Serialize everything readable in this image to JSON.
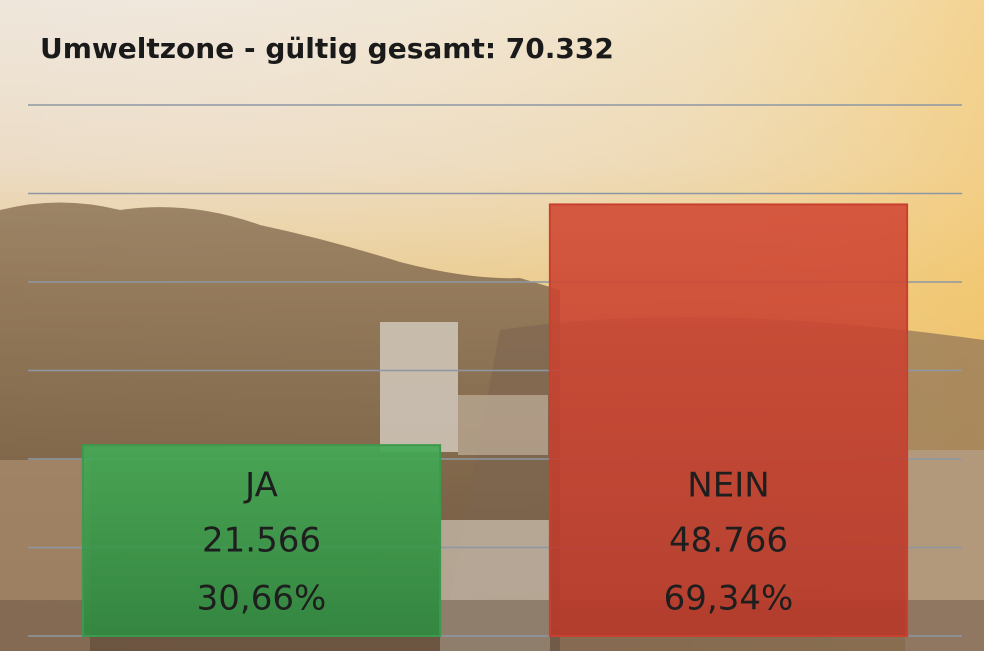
{
  "chart_data": {
    "type": "bar",
    "title": "Umweltzone - gültig gesamt: 70.332",
    "categories": [
      "JA",
      "NEIN"
    ],
    "values": [
      21566,
      48766
    ],
    "value_labels": [
      "21.566",
      "48.766"
    ],
    "percentages": [
      30.66,
      69.34
    ],
    "percentage_labels": [
      "30,66%",
      "69,34%"
    ],
    "colors": [
      "#3d9a4c",
      "#c8412f"
    ],
    "ylim": [
      0,
      60000
    ],
    "yticks": [
      0,
      10000,
      20000,
      30000,
      40000,
      50000,
      60000
    ],
    "grid": true
  }
}
